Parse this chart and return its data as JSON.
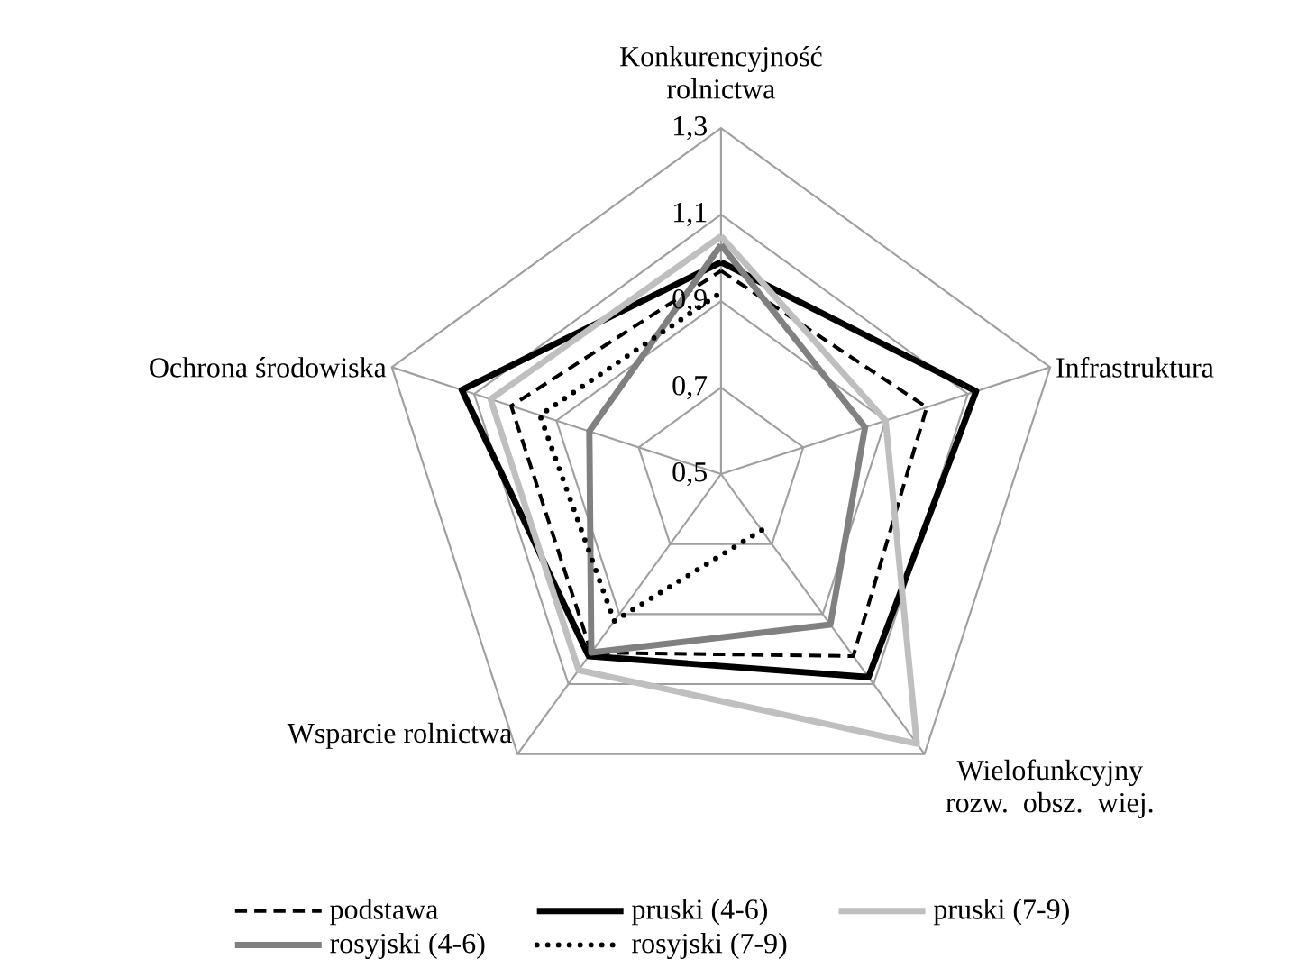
{
  "chart_data": {
    "type": "radar",
    "categories": [
      "Konkurencyjność rolnictwa",
      "Infrastruktura",
      "Wielofunkcyjny rozw. obsz. wiej.",
      "Wsparcie rolnictwa",
      "Ochrona środowiska"
    ],
    "ylim": [
      0.5,
      1.3
    ],
    "yticks": [
      {
        "value": 0.5,
        "label": "0,5"
      },
      {
        "value": 0.7,
        "label": "0,7"
      },
      {
        "value": 0.9,
        "label": "0,9"
      },
      {
        "value": 1.1,
        "label": "1,1"
      },
      {
        "value": 1.3,
        "label": "1,3"
      }
    ],
    "grid": true,
    "legend": "bottom",
    "marker": "none",
    "series": [
      {
        "name": "podstawa",
        "color": "#000000",
        "line_style": "dashed",
        "values": [
          0.97,
          1.0,
          1.02,
          1.01,
          1.01
        ]
      },
      {
        "name": "pruski (4-6)",
        "color": "#000000",
        "line_style": "solid",
        "values": [
          0.99,
          1.12,
          1.08,
          1.02,
          1.13
        ]
      },
      {
        "name": "pruski (7-9)",
        "color": "#bfbfbf",
        "line_style": "solid",
        "values": [
          1.05,
          0.9,
          1.27,
          1.06,
          1.06
        ]
      },
      {
        "name": "rosyjski (4-6)",
        "color": "#808080",
        "line_style": "solid",
        "values": [
          1.03,
          0.85,
          0.93,
          1.01,
          0.82
        ]
      },
      {
        "name": "rosyjski (7-9)",
        "color": "#000000",
        "line_style": "dotted",
        "values": [
          0.92,
          null,
          0.66,
          0.92,
          0.94
        ]
      }
    ]
  }
}
